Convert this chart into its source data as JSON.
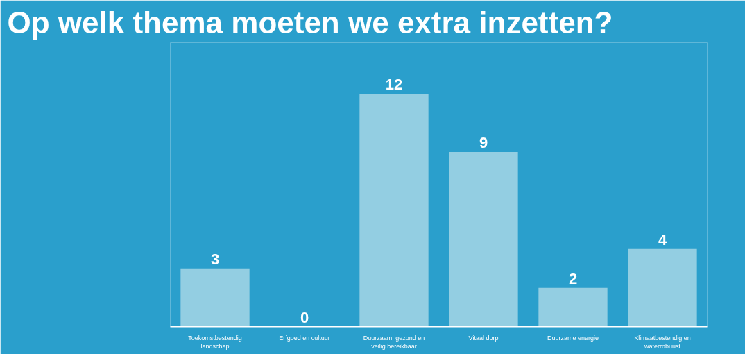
{
  "chart_data": {
    "type": "bar",
    "title": "Op welk thema moeten we extra inzetten?",
    "categories": [
      "Toekomstbestendig landschap",
      "Erfgoed en cultuur",
      "Duurzaam, gezond en veilig bereikbaar",
      "Vitaal dorp",
      "Duurzame energie",
      "Klimaatbestendig en waterrobuust"
    ],
    "values": [
      3,
      0,
      12,
      9,
      2,
      4
    ],
    "color": "#9fd3e4",
    "data_labels": true
  }
}
